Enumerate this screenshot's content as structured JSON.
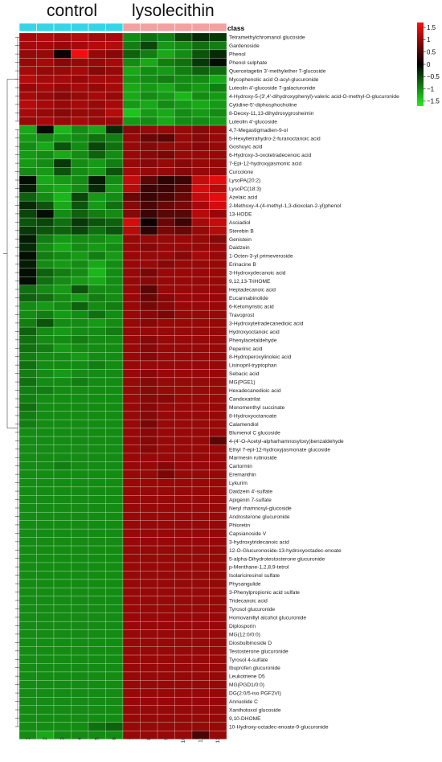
{
  "chart_data": {
    "type": "heatmap",
    "class_label": "class",
    "groups": [
      {
        "name": "control",
        "color": "#33d6e6",
        "columns": [
          "1",
          "2",
          "3",
          "4",
          "5",
          "6"
        ]
      },
      {
        "name": "lysolecithin",
        "color": "#f2a0a0",
        "columns": [
          "7",
          "8",
          "9",
          "10",
          "11",
          "12"
        ]
      }
    ],
    "columns": [
      "1",
      "2",
      "3",
      "4",
      "5",
      "6",
      "7",
      "8",
      "9",
      "10",
      "11",
      "12"
    ],
    "colorbar": {
      "ticks": [
        1.5,
        1,
        0.5,
        0,
        -0.5,
        -1,
        -1.5
      ],
      "tick_labels": [
        "1.5",
        "1",
        "0.5",
        "0",
        "−0.5",
        "−1",
        "−1.5"
      ],
      "range": [
        -1.7,
        1.7
      ],
      "low_color": "#22ee22",
      "mid_color": "#000000",
      "high_color": "#ff1010"
    },
    "rows": [
      "Tetramethylchromanol glucoside",
      "Gardenoside",
      "Phenol",
      "Phenol sulphate",
      "Quercetagetin 3'-methylether 7-glucoside",
      "Mycophenolic acid O-acyl-glucuronide",
      "Luteolin 4'-glucoside 7-galacturonide",
      "4-Hydroxy-5-(3',4'-dihydroxyphenyl)-valeric acid-O-methyl-O-glucuronide",
      "Cytidine-5'-diphosphocholine",
      "8-Deoxy-11,13-dihydroxygrosheimin",
      "Luteolin 4'-glucoside",
      "4,7-Megastigmadien-9-ol",
      "5-Hexyltetrahydro-2-furanoctanoic acid",
      "Goshuyic acid",
      "6-Hydroxy-3-oxotetradecenoic acid",
      "7-Epi-12-hydroxyjasmonic acid",
      "Curcolone",
      "LysoPA(20:2)",
      "LysoPC(18:3)",
      "Azelaic acid",
      "2-Methoxy-4-(4-methyl-1,3-dioxolan-2-yl)phenol",
      "13-HODE",
      "Asciadiol",
      "Sterebin B",
      "Genistein",
      "Daidzein",
      "1-Octen-3-yl primeveroside",
      "Erinacine B",
      "3-Hydroxydecanoic acid",
      "9,12,13-TriHOME",
      "Heptadecanoic acid",
      "Eucannabinolide",
      "6-Ketomyristic acid",
      "Travoprost",
      "3-Hydroxytetradecanedioic acid",
      "Hydroxyoctanoic acid",
      "Phenylacetaldehyde",
      "Peperinic acid",
      "8-Hydroperoxylinoleic acid",
      "Lisinopril-tryptophan",
      "Sebacic acid",
      "MG(PGE1)",
      "Hexadecanedioic acid",
      "Candoxatrilat",
      "Monomenthyl succinate",
      "8-Hydroxyoctanoate",
      "Calamendiol",
      "Blumenol C glucoside",
      "4-(4'-O-Acetyl-alpharhamnosyloxy)benzaldehyde",
      "Ethyl 7-epi-12-hydroxyjasmonate glucoside",
      "Marmesin rutinoside",
      "Cartormin",
      "Eremanthin",
      "Lykurim",
      "Daidzein 4'-sulfate",
      "Apigenin 7-sulfate",
      "Neryl rhamnosyl-glucoside",
      "Androsterone glucuronide",
      "Phloretin",
      "Capsianoside V",
      "3-hydroxytridecanoic acid",
      "12-O-Glucuronoside-13-hydroxyoctadec-enoate",
      "5-alpha-Dihydrotestosterone glucuronide",
      "p-Menthane-1,2,8,9-tetrol",
      "Isolariciresinol sulfate",
      "Physangulide",
      "3-Phenylpropionic acid sulfate",
      "Tridecanoic acid",
      "Tyrosol glucuronide",
      "Homovanillyl alcohol glucuronide",
      "Diplosporin",
      "MG(12:0/0:0)",
      "Diosbulbinoside D",
      "Testosterone glucuronide",
      "Tyrosol 4-sulfate",
      "Ibuprofen glucuronide",
      "Leukotriene D5",
      "MG(PGD1/0:0)",
      "DG(2:0/5-iso PGF2VI)",
      "Annuolide C",
      "Xanthotoxol glucoside",
      "9,10-DHOME",
      "10-Hydroxy-octadec-enoate-9-glucuronide"
    ],
    "values": [
      [
        1.1,
        1.2,
        1.1,
        1.2,
        1.1,
        1.1,
        -1.0,
        -0.8,
        -0.9,
        -0.5,
        -0.3,
        -0.4
      ],
      [
        1.1,
        1.1,
        1.0,
        1.1,
        1.2,
        1.2,
        -0.9,
        -0.5,
        -1.1,
        -1.0,
        -0.8,
        -0.9
      ],
      [
        1.0,
        1.0,
        0.1,
        1.6,
        1.0,
        0.9,
        -0.7,
        -0.9,
        -1.2,
        -1.0,
        -0.6,
        -0.3
      ],
      [
        1.0,
        1.1,
        0.9,
        1.0,
        1.0,
        1.1,
        -1.0,
        -1.2,
        -0.9,
        -0.8,
        -0.4,
        -0.1
      ],
      [
        1.1,
        1.0,
        1.0,
        1.1,
        0.9,
        1.0,
        -1.2,
        -1.0,
        -1.1,
        -0.9,
        -0.7,
        -0.8
      ],
      [
        1.2,
        1.1,
        1.1,
        1.0,
        1.1,
        1.1,
        -1.1,
        -1.0,
        -0.9,
        -1.0,
        -1.0,
        -1.2
      ],
      [
        1.0,
        1.1,
        1.0,
        1.1,
        1.0,
        1.1,
        -1.2,
        -1.1,
        -1.2,
        -1.0,
        -1.1,
        -0.9
      ],
      [
        1.1,
        1.0,
        0.9,
        1.0,
        1.1,
        1.0,
        -1.2,
        -1.0,
        -1.1,
        -1.3,
        -1.0,
        -1.1
      ],
      [
        1.2,
        1.1,
        1.0,
        1.1,
        1.0,
        1.1,
        -1.1,
        -1.2,
        -1.0,
        -1.1,
        -1.2,
        -1.1
      ],
      [
        1.1,
        1.0,
        0.9,
        1.0,
        1.0,
        1.2,
        -1.4,
        -1.1,
        -1.2,
        -1.0,
        -1.1,
        -1.0
      ],
      [
        1.0,
        1.1,
        1.0,
        1.1,
        1.0,
        1.0,
        -1.1,
        -1.0,
        -1.2,
        -1.0,
        -1.0,
        -1.1
      ],
      [
        -1.2,
        -0.1,
        -1.3,
        -1.0,
        -1.2,
        -0.3,
        0.9,
        1.0,
        1.0,
        1.0,
        0.9,
        1.0
      ],
      [
        -1.1,
        -1.0,
        -1.1,
        -1.0,
        -0.8,
        -0.9,
        1.0,
        0.7,
        0.6,
        1.0,
        0.9,
        1.0
      ],
      [
        -1.0,
        -1.2,
        -0.6,
        -1.0,
        -0.5,
        -0.8,
        1.0,
        0.9,
        1.0,
        1.0,
        0.9,
        1.0
      ],
      [
        -1.1,
        -1.0,
        -1.2,
        -1.0,
        -0.7,
        -1.0,
        1.0,
        0.9,
        0.8,
        1.0,
        1.0,
        1.0
      ],
      [
        -1.1,
        -1.0,
        -0.4,
        -1.0,
        -1.1,
        -0.9,
        1.0,
        0.9,
        1.0,
        0.9,
        1.0,
        1.0
      ],
      [
        -1.0,
        -1.1,
        -0.6,
        -1.0,
        -1.1,
        -0.6,
        1.1,
        1.0,
        1.0,
        0.9,
        1.0,
        1.0
      ],
      [
        -0.1,
        -1.2,
        -1.1,
        -1.0,
        -0.2,
        -1.0,
        1.3,
        0.6,
        0.3,
        0.4,
        1.3,
        1.5
      ],
      [
        -0.2,
        -1.1,
        -1.2,
        -1.0,
        -0.3,
        -1.1,
        1.2,
        0.4,
        0.4,
        0.6,
        1.4,
        1.2
      ],
      [
        -0.7,
        -1.0,
        -1.3,
        -0.5,
        -1.1,
        -1.0,
        0.7,
        0.4,
        0.5,
        0.7,
        1.3,
        1.5
      ],
      [
        -0.3,
        -0.6,
        -1.2,
        -0.6,
        -1.1,
        -0.8,
        0.9,
        0.5,
        0.7,
        0.8,
        1.1,
        1.4
      ],
      [
        -0.5,
        -0.1,
        -1.0,
        -0.7,
        -0.9,
        -1.0,
        0.9,
        0.4,
        0.6,
        0.6,
        1.2,
        1.0
      ],
      [
        -0.6,
        -0.5,
        -0.8,
        -0.4,
        -0.6,
        -0.7,
        1.4,
        0.1,
        0.7,
        0.4,
        1.1,
        1.3
      ],
      [
        -0.4,
        -0.6,
        -0.7,
        -0.5,
        -0.8,
        -0.6,
        1.2,
        0.3,
        0.8,
        0.7,
        1.0,
        1.2
      ],
      [
        -0.2,
        -0.9,
        -1.1,
        -1.0,
        -1.0,
        -1.1,
        1.0,
        1.0,
        1.0,
        1.0,
        1.0,
        0.9
      ],
      [
        -0.3,
        -1.0,
        -1.2,
        -1.0,
        -1.1,
        -1.0,
        1.0,
        0.9,
        1.0,
        1.0,
        1.0,
        1.0
      ],
      [
        -0.1,
        -0.9,
        -1.0,
        -1.1,
        -0.9,
        -1.1,
        1.0,
        1.0,
        1.0,
        0.9,
        1.1,
        1.0
      ],
      [
        -0.2,
        -1.0,
        -1.1,
        -1.0,
        -1.2,
        -1.0,
        1.0,
        1.0,
        0.9,
        1.0,
        1.0,
        1.0
      ],
      [
        -0.1,
        -0.7,
        -0.9,
        -1.0,
        -1.3,
        -1.0,
        1.0,
        0.8,
        1.0,
        1.0,
        1.0,
        1.0
      ],
      [
        -0.1,
        -0.8,
        -1.0,
        -1.1,
        -1.2,
        -1.0,
        1.0,
        0.9,
        1.0,
        1.0,
        1.0,
        1.0
      ],
      [
        -0.8,
        -1.0,
        -1.1,
        -0.6,
        -1.0,
        -1.0,
        1.0,
        0.6,
        1.0,
        1.0,
        1.0,
        1.0
      ],
      [
        -0.7,
        -0.8,
        -1.0,
        -1.1,
        -0.9,
        -1.0,
        1.0,
        0.7,
        0.9,
        1.0,
        1.0,
        1.0
      ],
      [
        -1.0,
        -1.1,
        -1.0,
        -0.7,
        -1.0,
        -0.9,
        1.0,
        0.8,
        0.9,
        1.0,
        1.0,
        1.0
      ],
      [
        -1.0,
        -0.9,
        -1.1,
        -1.0,
        -0.8,
        -1.0,
        1.0,
        0.9,
        0.8,
        1.0,
        1.0,
        1.0
      ],
      [
        -0.9,
        -0.6,
        -1.0,
        -1.0,
        -1.1,
        -1.0,
        1.0,
        0.9,
        1.0,
        1.0,
        1.0,
        1.0
      ],
      [
        -0.7,
        -1.0,
        -1.1,
        -1.0,
        -1.0,
        -0.9,
        1.0,
        1.0,
        1.0,
        1.0,
        1.0,
        1.0
      ],
      [
        -0.8,
        -1.0,
        -1.0,
        -0.9,
        -1.0,
        -1.0,
        1.0,
        0.9,
        1.0,
        1.0,
        1.0,
        1.0
      ],
      [
        -0.8,
        -0.9,
        -1.1,
        -1.0,
        -1.0,
        -1.0,
        1.0,
        0.9,
        1.0,
        1.0,
        1.0,
        1.0
      ],
      [
        -0.9,
        -1.0,
        -1.0,
        -1.1,
        -1.0,
        -1.0,
        1.0,
        0.9,
        1.0,
        1.0,
        1.0,
        1.0
      ],
      [
        -0.8,
        -1.0,
        -1.0,
        -1.0,
        -0.9,
        -1.0,
        1.0,
        1.0,
        1.0,
        1.0,
        1.0,
        1.0
      ],
      [
        -0.9,
        -1.0,
        -1.1,
        -1.0,
        -1.0,
        -1.0,
        1.0,
        0.9,
        1.0,
        1.0,
        1.0,
        1.0
      ],
      [
        -0.8,
        -1.0,
        -1.0,
        -0.9,
        -1.0,
        -1.0,
        1.0,
        0.9,
        1.0,
        1.0,
        1.0,
        1.0
      ],
      [
        -0.9,
        -0.9,
        -1.0,
        -1.0,
        -1.0,
        -1.0,
        1.0,
        0.9,
        1.0,
        1.0,
        1.0,
        1.0
      ],
      [
        -0.9,
        -1.0,
        -1.0,
        -1.0,
        -1.0,
        -1.0,
        1.0,
        0.9,
        0.9,
        1.0,
        1.0,
        1.0
      ],
      [
        -0.8,
        -1.0,
        -1.0,
        -1.0,
        -1.0,
        -1.0,
        1.0,
        0.9,
        1.0,
        1.0,
        1.0,
        1.0
      ],
      [
        -0.9,
        -1.0,
        -1.0,
        -1.0,
        -1.0,
        -1.0,
        1.0,
        0.9,
        1.0,
        1.0,
        1.0,
        1.0
      ],
      [
        -0.9,
        -1.0,
        -1.0,
        -1.0,
        -1.0,
        -1.0,
        1.0,
        0.8,
        1.0,
        1.0,
        1.0,
        1.0
      ],
      [
        -1.0,
        -1.0,
        -1.0,
        -1.0,
        -1.0,
        -1.0,
        1.0,
        0.9,
        1.0,
        1.0,
        1.0,
        1.0
      ],
      [
        -1.0,
        -1.0,
        -1.0,
        -1.0,
        -1.0,
        -1.0,
        1.0,
        0.9,
        1.0,
        1.0,
        1.0,
        0.6
      ],
      [
        -1.0,
        -1.0,
        -1.0,
        -1.0,
        -1.0,
        -1.0,
        1.0,
        0.9,
        1.0,
        1.0,
        1.0,
        1.0
      ],
      [
        -1.0,
        -1.0,
        -1.0,
        -1.0,
        -1.0,
        -1.0,
        1.0,
        1.0,
        1.0,
        1.0,
        1.0,
        1.0
      ],
      [
        -1.0,
        -1.0,
        -0.9,
        -1.0,
        -1.0,
        -1.0,
        1.0,
        1.0,
        0.9,
        1.0,
        1.0,
        1.0
      ],
      [
        -1.0,
        -1.0,
        -1.0,
        -1.0,
        -1.0,
        -1.0,
        1.0,
        1.0,
        0.8,
        1.0,
        1.0,
        1.0
      ],
      [
        -1.0,
        -1.0,
        -1.0,
        -1.0,
        -1.0,
        -1.0,
        1.0,
        1.0,
        1.0,
        1.0,
        1.0,
        1.0
      ],
      [
        -1.0,
        -1.0,
        -1.0,
        -1.0,
        -1.0,
        -1.0,
        1.0,
        1.0,
        1.0,
        1.0,
        1.0,
        1.0
      ],
      [
        -1.0,
        -1.0,
        -1.0,
        -1.0,
        -1.0,
        -1.0,
        1.0,
        1.0,
        1.0,
        1.0,
        1.0,
        1.0
      ],
      [
        -1.0,
        -1.0,
        -1.0,
        -1.0,
        -1.0,
        -1.0,
        1.0,
        1.0,
        1.0,
        1.0,
        1.0,
        1.0
      ],
      [
        -1.0,
        -1.0,
        -1.0,
        -1.0,
        -1.0,
        -1.0,
        1.0,
        1.0,
        1.0,
        1.0,
        1.0,
        1.0
      ],
      [
        -1.0,
        -1.0,
        -1.0,
        -1.0,
        -1.0,
        -1.0,
        1.0,
        1.0,
        1.0,
        1.0,
        1.0,
        1.0
      ],
      [
        -1.0,
        -1.0,
        -1.0,
        -1.0,
        -1.0,
        -1.0,
        1.0,
        1.0,
        1.0,
        1.0,
        1.0,
        1.0
      ],
      [
        -1.0,
        -1.0,
        -1.0,
        -1.0,
        -1.0,
        -1.0,
        1.0,
        1.0,
        1.0,
        1.0,
        1.0,
        1.0
      ],
      [
        -1.0,
        -1.0,
        -1.0,
        -1.0,
        -1.0,
        -1.0,
        1.0,
        1.0,
        1.0,
        1.0,
        1.0,
        1.0
      ],
      [
        -1.0,
        -1.0,
        -1.0,
        -1.0,
        -1.0,
        -1.0,
        1.0,
        1.0,
        1.0,
        1.0,
        1.0,
        1.0
      ],
      [
        -1.0,
        -1.0,
        -1.0,
        -1.0,
        -1.0,
        -1.0,
        1.0,
        1.0,
        1.0,
        1.0,
        1.0,
        1.0
      ],
      [
        -1.0,
        -1.0,
        -1.0,
        -1.0,
        -1.0,
        -1.0,
        1.0,
        1.0,
        1.0,
        1.0,
        1.0,
        1.0
      ],
      [
        -1.0,
        -1.0,
        -1.0,
        -1.0,
        -1.0,
        -1.0,
        1.0,
        1.0,
        1.0,
        1.0,
        1.0,
        1.0
      ],
      [
        -1.0,
        -1.0,
        -1.0,
        -1.0,
        -1.0,
        -1.0,
        1.0,
        1.0,
        1.0,
        1.0,
        1.0,
        1.0
      ],
      [
        -1.0,
        -1.0,
        -1.0,
        -1.0,
        -1.0,
        -1.0,
        1.0,
        1.0,
        1.0,
        1.0,
        1.0,
        1.0
      ],
      [
        -1.0,
        -1.0,
        -1.0,
        -1.0,
        -1.0,
        -1.0,
        1.0,
        1.0,
        1.0,
        1.0,
        1.0,
        1.0
      ],
      [
        -1.0,
        -1.0,
        -1.0,
        -1.0,
        -1.0,
        -1.0,
        1.0,
        1.0,
        1.0,
        1.0,
        1.0,
        1.0
      ],
      [
        -1.0,
        -1.0,
        -1.0,
        -1.0,
        -1.0,
        -1.0,
        1.0,
        1.0,
        1.0,
        1.0,
        1.0,
        1.0
      ],
      [
        -1.0,
        -1.0,
        -1.0,
        -1.0,
        -1.0,
        -1.0,
        1.0,
        1.0,
        1.0,
        1.0,
        1.0,
        1.0
      ],
      [
        -1.0,
        -1.0,
        -1.0,
        -1.0,
        -1.0,
        -1.0,
        1.0,
        1.0,
        1.0,
        1.0,
        1.0,
        1.0
      ],
      [
        -1.0,
        -1.0,
        -1.0,
        -1.0,
        -1.0,
        -1.0,
        1.0,
        1.0,
        1.0,
        1.0,
        1.0,
        1.0
      ],
      [
        -1.0,
        -1.0,
        -1.0,
        -1.0,
        -1.0,
        -1.0,
        1.0,
        1.0,
        1.0,
        1.0,
        1.0,
        1.0
      ],
      [
        -1.0,
        -1.0,
        -1.0,
        -1.0,
        -1.0,
        -1.0,
        1.0,
        1.0,
        1.0,
        1.0,
        1.0,
        1.0
      ],
      [
        -1.0,
        -1.0,
        -1.0,
        -1.0,
        -1.0,
        -1.0,
        1.0,
        1.0,
        1.0,
        1.0,
        1.0,
        1.0
      ],
      [
        -1.0,
        -1.0,
        -1.0,
        -1.0,
        -1.0,
        -1.0,
        1.0,
        1.0,
        1.0,
        1.0,
        1.0,
        1.0
      ],
      [
        -1.0,
        -1.0,
        -1.0,
        -1.0,
        -1.0,
        -1.0,
        1.0,
        1.0,
        1.0,
        1.0,
        1.0,
        1.0
      ],
      [
        -1.0,
        -1.0,
        -1.0,
        -1.0,
        -1.0,
        -1.0,
        1.0,
        1.0,
        1.0,
        1.0,
        1.0,
        1.0
      ],
      [
        -1.0,
        -1.0,
        -1.0,
        -1.0,
        -1.0,
        -1.0,
        1.0,
        1.0,
        1.0,
        1.0,
        1.0,
        1.0
      ],
      [
        -1.0,
        -1.0,
        -1.0,
        -1.0,
        -1.0,
        -1.0,
        1.0,
        1.0,
        1.0,
        1.0,
        1.0,
        1.0
      ],
      [
        -1.0,
        -1.0,
        -1.0,
        -1.0,
        -0.8,
        -0.7,
        1.0,
        1.0,
        1.0,
        1.0,
        1.0,
        1.0
      ],
      [
        -1.0,
        -1.2,
        -1.0,
        -1.0,
        -1.0,
        -1.0,
        1.0,
        1.0,
        1.0,
        1.0,
        0.5,
        1.0
      ]
    ]
  }
}
